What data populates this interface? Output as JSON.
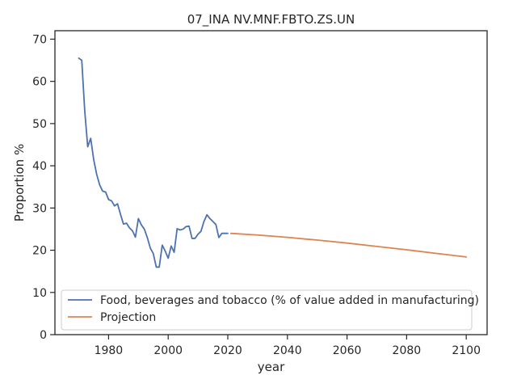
{
  "chart_data": {
    "type": "line",
    "title": "07_INA NV.MNF.FBTO.ZS.UN",
    "xlabel": "year",
    "ylabel": "Proportion %",
    "xlim": [
      1962,
      2107
    ],
    "ylim": [
      0,
      72
    ],
    "xticks": [
      1980,
      2000,
      2020,
      2040,
      2060,
      2080,
      2100
    ],
    "yticks": [
      0,
      10,
      20,
      30,
      40,
      50,
      60,
      70
    ],
    "grid": false,
    "legend_position": "lower-left",
    "series": [
      {
        "name": "Food, beverages and tobacco (% of value added in manufacturing)",
        "color": "#4c72b0",
        "x": [
          1970,
          1971,
          1972,
          1973,
          1974,
          1975,
          1976,
          1977,
          1978,
          1979,
          1980,
          1981,
          1982,
          1983,
          1984,
          1985,
          1986,
          1987,
          1988,
          1989,
          1990,
          1991,
          1992,
          1993,
          1994,
          1995,
          1996,
          1997,
          1998,
          1999,
          2000,
          2001,
          2002,
          2003,
          2004,
          2005,
          2006,
          2007,
          2008,
          2009,
          2010,
          2011,
          2012,
          2013,
          2014,
          2015,
          2016,
          2017,
          2018,
          2019,
          2020
        ],
        "y": [
          65.5,
          65,
          53,
          44.5,
          46.5,
          41.5,
          38,
          35.5,
          34,
          33.8,
          32,
          31.7,
          30.5,
          31,
          28.5,
          26.2,
          26.4,
          25.3,
          24.6,
          23.1,
          27.5,
          26,
          25,
          23,
          20.5,
          19.2,
          16,
          16,
          21.2,
          19.8,
          18.1,
          21,
          19.5,
          25.1,
          24.8,
          25,
          25.6,
          25.7,
          22.8,
          22.8,
          23.8,
          24.5,
          26.8,
          28.4,
          27.5,
          26.8,
          26.1,
          23,
          24,
          24,
          24
        ]
      },
      {
        "name": "Projection",
        "color": "#dd8452",
        "x": [
          2021,
          2030,
          2040,
          2050,
          2060,
          2070,
          2080,
          2090,
          2100
        ],
        "y": [
          24,
          23.6,
          23.05,
          22.4,
          21.7,
          20.9,
          20.1,
          19.25,
          18.4
        ]
      }
    ]
  }
}
